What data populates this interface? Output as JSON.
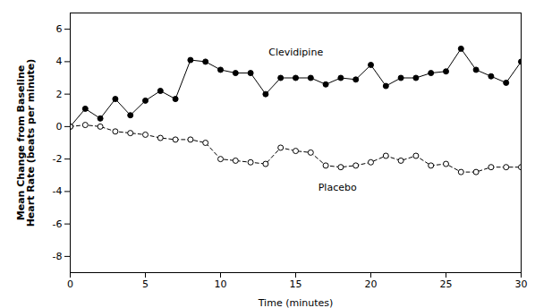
{
  "chart_data": {
    "type": "line",
    "x": [
      0,
      1,
      2,
      3,
      4,
      5,
      6,
      7,
      8,
      9,
      10,
      11,
      12,
      13,
      14,
      15,
      16,
      17,
      18,
      19,
      20,
      21,
      22,
      23,
      24,
      25,
      26,
      27,
      28,
      29,
      30
    ],
    "series": [
      {
        "color": "#000000",
        "marker": "filled_circle",
        "line_style": "solid",
        "values": [
          0,
          1.1,
          0.5,
          1.7,
          0.7,
          1.6,
          2.2,
          1.7,
          4.1,
          4.0,
          3.5,
          3.3,
          3.3,
          2.0,
          3.0,
          3.0,
          3.0,
          2.6,
          3.0,
          2.9,
          3.8,
          2.5,
          3.0,
          3.0,
          3.3,
          3.4,
          4.8,
          3.5,
          3.1,
          2.7,
          4.0
        ]
      },
      {
        "color": "#000000",
        "marker": "open_circle",
        "line_style": "dashed",
        "values": [
          0,
          0.1,
          0.0,
          -0.3,
          -0.4,
          -0.5,
          -0.7,
          -0.8,
          -0.8,
          -1.0,
          -2.0,
          -2.1,
          -2.2,
          -2.3,
          -1.3,
          -1.5,
          -1.6,
          -2.4,
          -2.5,
          -2.4,
          -2.2,
          -1.8,
          -2.1,
          -1.8,
          -2.4,
          -2.3,
          -2.8,
          -2.8,
          -2.5,
          -2.5,
          -2.5
        ]
      }
    ],
    "annotations": [
      {
        "text": "Clevidipine",
        "x": 13.2,
        "y": 4.4
      },
      {
        "text": "Placebo",
        "x": 16.5,
        "y": -3.5
      }
    ],
    "xlabel": "Time (minutes)",
    "ylabel": "Mean Change from Baseline\nHeart Rate (beats per minute)",
    "xlim": [
      0,
      30
    ],
    "ylim": [
      -9,
      7
    ],
    "xticks": [
      0,
      5,
      10,
      15,
      20,
      25,
      30
    ],
    "yticks": [
      -8,
      -6,
      -4,
      -2,
      0,
      2,
      4,
      6
    ],
    "grid": false
  }
}
